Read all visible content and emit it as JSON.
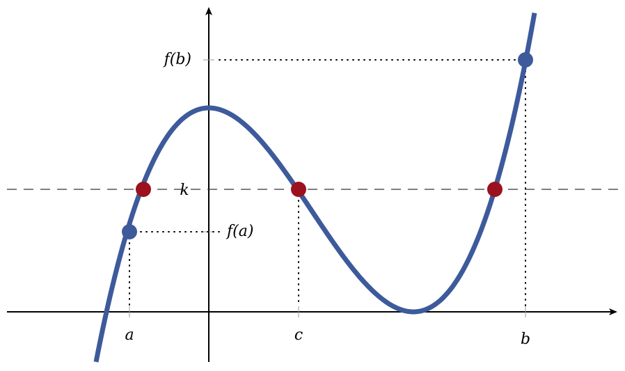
{
  "labels": {
    "fb": "f(b)",
    "k": "k",
    "fa": "f(a)",
    "a": "a",
    "c": "c",
    "b": "b"
  }
}
